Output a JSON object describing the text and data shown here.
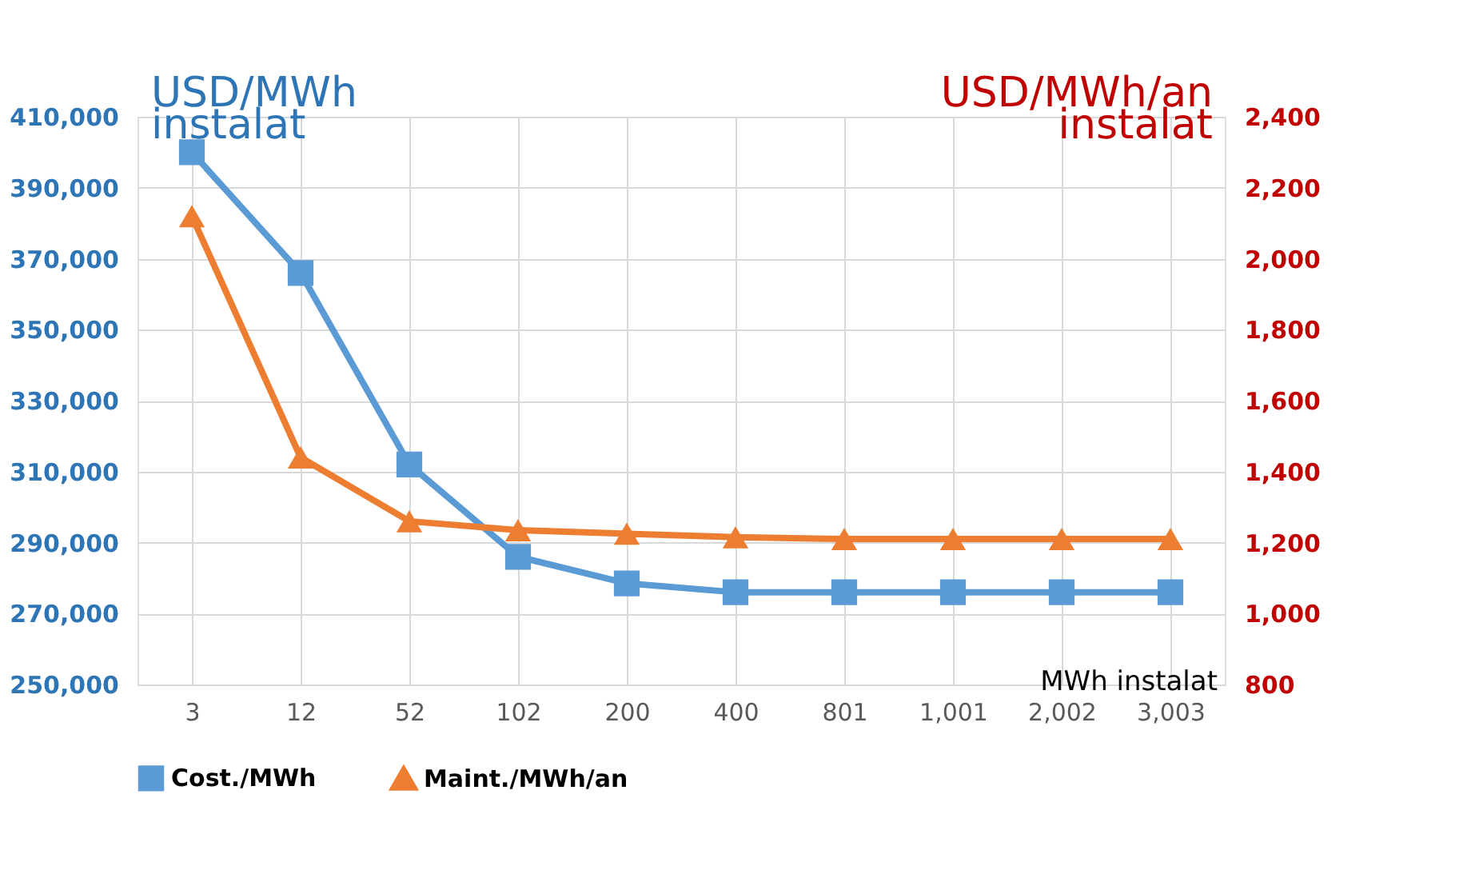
{
  "chart_data": {
    "type": "line",
    "categories": [
      "3",
      "12",
      "52",
      "102",
      "200",
      "400",
      "801",
      "1,001",
      "2,002",
      "3,003"
    ],
    "series": [
      {
        "name": "Cost./MWh",
        "color": "#5b9bd5",
        "marker": "square",
        "values": [
          400000,
          366000,
          312000,
          286000,
          278500,
          276000,
          276000,
          276000,
          276000,
          276000
        ]
      },
      {
        "name": "Maint./MWh/an",
        "color": "#ed7d31",
        "marker": "triangle",
        "axis": "y2",
        "values": [
          2120,
          1440,
          1260,
          1235,
          1225,
          1215,
          1210,
          1210,
          1210,
          1210
        ]
      }
    ],
    "ylabel": "USD/MWh instalat",
    "y2label": "USD/MWh/an instalat",
    "xlabel": "MWh instalat",
    "ylim": [
      250000,
      410000
    ],
    "yticks": [
      {
        "value": 250000,
        "label": "250,000"
      },
      {
        "value": 270000,
        "label": "270,000"
      },
      {
        "value": 290000,
        "label": "290,000"
      },
      {
        "value": 310000,
        "label": "310,000"
      },
      {
        "value": 330000,
        "label": "330,000"
      },
      {
        "value": 350000,
        "label": "350,000"
      },
      {
        "value": 370000,
        "label": "370,000"
      },
      {
        "value": 390000,
        "label": "390,000"
      },
      {
        "value": 410000,
        "label": "410,000"
      }
    ],
    "y2lim": [
      800,
      2400
    ],
    "y2ticks": [
      800,
      {
        "value": 1000,
        "label": "1,000"
      },
      {
        "value": 1200,
        "label": "1,200"
      },
      {
        "value": 1400,
        "label": "1,400"
      },
      {
        "value": 1600,
        "label": "1,600"
      },
      {
        "value": 1800,
        "label": "1,800"
      },
      {
        "value": 2000,
        "label": "2,000"
      },
      {
        "value": 2200,
        "label": "2,200"
      },
      {
        "value": 2400,
        "label": "2,400"
      }
    ],
    "grid": true,
    "legend": "bottom",
    "line_style": "solid"
  }
}
